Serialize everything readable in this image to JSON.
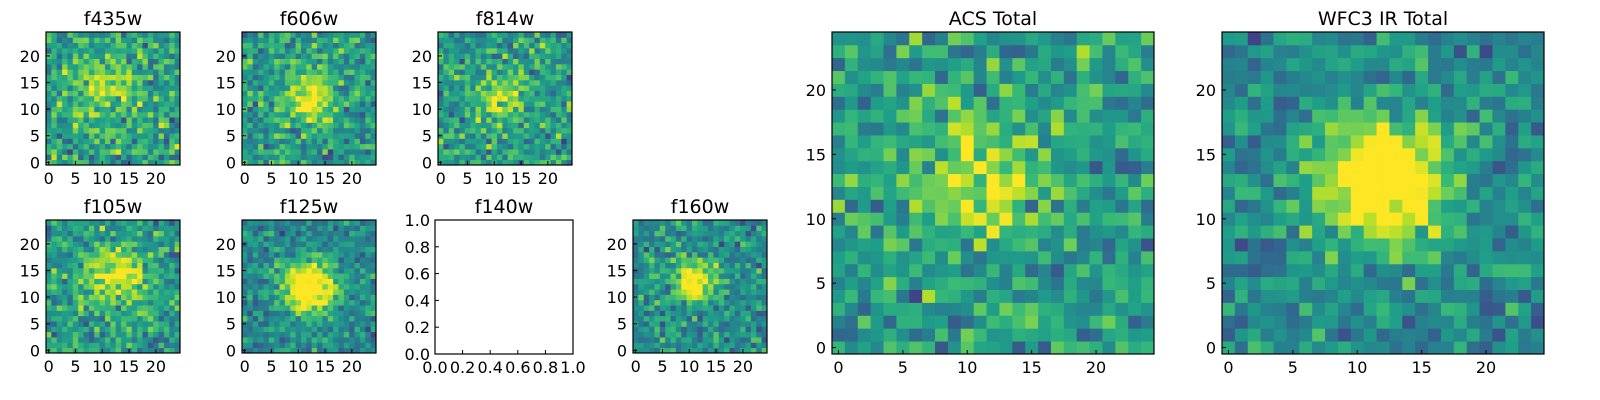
{
  "chart_data": [
    {
      "type": "heatmap",
      "title": "f435w",
      "image": true,
      "n": 25,
      "xticks": [
        0,
        5,
        10,
        15,
        20
      ],
      "yticks": [
        0,
        5,
        10,
        15,
        20
      ],
      "source_profile": {
        "center": [
          10,
          14
        ],
        "amplitude": 0.25,
        "sigma": 4
      },
      "colormap": "viridis"
    },
    {
      "type": "heatmap",
      "title": "f606w",
      "image": true,
      "n": 25,
      "xticks": [
        0,
        5,
        10,
        15,
        20
      ],
      "yticks": [
        0,
        5,
        10,
        15,
        20
      ],
      "source_profile": {
        "center": [
          12,
          12
        ],
        "amplitude": 0.45,
        "sigma": 3.5
      },
      "colormap": "viridis"
    },
    {
      "type": "heatmap",
      "title": "f814w",
      "image": true,
      "n": 25,
      "xticks": [
        0,
        5,
        10,
        15,
        20
      ],
      "yticks": [
        0,
        5,
        10,
        15,
        20
      ],
      "source_profile": {
        "center": [
          11,
          12
        ],
        "amplitude": 0.35,
        "sigma": 3
      },
      "colormap": "viridis"
    },
    {
      "type": "heatmap",
      "title": "f105w",
      "image": true,
      "n": 25,
      "xticks": [
        0,
        5,
        10,
        15,
        20
      ],
      "yticks": [
        0,
        5,
        10,
        15,
        20
      ],
      "source_profile": {
        "center": [
          12,
          14
        ],
        "amplitude": 0.4,
        "sigma": 4
      },
      "colormap": "viridis"
    },
    {
      "type": "heatmap",
      "title": "f125w",
      "image": true,
      "n": 25,
      "xticks": [
        0,
        5,
        10,
        15,
        20
      ],
      "yticks": [
        0,
        5,
        10,
        15,
        20
      ],
      "source_profile": {
        "center": [
          12,
          12
        ],
        "amplitude": 0.75,
        "sigma": 3.5
      },
      "colormap": "viridis"
    },
    {
      "type": "heatmap",
      "title": "f140w",
      "image": false,
      "xlim": [
        0,
        1
      ],
      "ylim": [
        0,
        1
      ],
      "xticks": [
        "0.0",
        "0.2",
        "0.4",
        "0.6",
        "0.8",
        "1.0"
      ],
      "yticks": [
        "0.0",
        "0.2",
        "0.4",
        "0.6",
        "0.8",
        "1.0"
      ],
      "values": []
    },
    {
      "type": "heatmap",
      "title": "f160w",
      "image": true,
      "n": 25,
      "xticks": [
        0,
        5,
        10,
        15,
        20
      ],
      "yticks": [
        0,
        5,
        10,
        15,
        20
      ],
      "source_profile": {
        "center": [
          11,
          13
        ],
        "amplitude": 0.6,
        "sigma": 2.5
      },
      "colormap": "viridis"
    },
    {
      "type": "heatmap",
      "title": "ACS Total",
      "image": true,
      "n": 25,
      "xticks": [
        0,
        5,
        10,
        15,
        20
      ],
      "yticks": [
        0,
        5,
        10,
        15,
        20
      ],
      "source_profile": {
        "center": [
          11,
          13
        ],
        "amplitude": 0.35,
        "sigma": 3.5
      },
      "colormap": "viridis"
    },
    {
      "type": "heatmap",
      "title": "WFC3 IR Total",
      "image": true,
      "n": 25,
      "xticks": [
        0,
        5,
        10,
        15,
        20
      ],
      "yticks": [
        0,
        5,
        10,
        15,
        20
      ],
      "source_profile": {
        "center": [
          12,
          13
        ],
        "amplitude": 0.75,
        "sigma": 3.5
      },
      "colormap": "viridis"
    }
  ]
}
